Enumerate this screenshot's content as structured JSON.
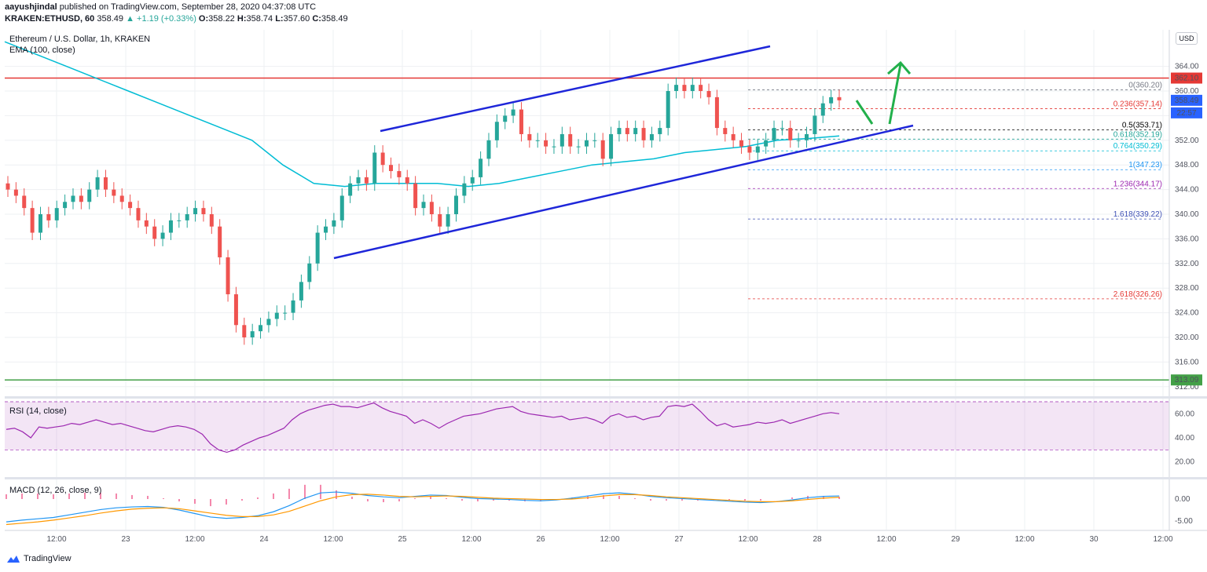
{
  "header": {
    "author": "aayushjindal",
    "published_text": "published on TradingView.com, September 28, 2020 04:37:08 UTC",
    "symbol": "KRAKEN:ETHUSD, 60",
    "last": "358.49",
    "change": "▲ +1.19 (+0.33%)",
    "o_label": "O:",
    "o": "358.22",
    "h_label": "H:",
    "h": "358.74",
    "l_label": "L:",
    "l": "357.60",
    "c_label": "C:",
    "c": "358.49"
  },
  "legend": {
    "title": "Ethereum / U.S. Dollar, 1h, KRAKEN",
    "ema": "EMA (100, close)",
    "rsi": "RSI (14, close)",
    "macd": "MACD (12, 26, close, 9)"
  },
  "currency": "USD",
  "branding": "TradingView",
  "colors": {
    "up": "#26a69a",
    "down": "#ef5350",
    "ema": "#00bcd4",
    "trend": "#1e26d9",
    "resistance": "#e53935",
    "support": "#43a047",
    "arrow": "#22b04b",
    "rsi": "#9c27b0",
    "macd": "#2196f3",
    "signal": "#ff9800"
  },
  "chart_data": {
    "type": "candlestick",
    "y_ticks": [
      "364.00",
      "360.00",
      "356.00",
      "352.00",
      "348.00",
      "344.00",
      "340.00",
      "336.00",
      "332.00",
      "328.00",
      "324.00",
      "320.00",
      "316.00",
      "312.00"
    ],
    "x_ticks": [
      "12:00",
      "23",
      "12:00",
      "24",
      "12:00",
      "25",
      "12:00",
      "26",
      "12:00",
      "27",
      "12:00",
      "28",
      "12:00",
      "29",
      "12:00",
      "30",
      "12:00"
    ],
    "price_labels": [
      {
        "value": "362.10",
        "kind": "resistance"
      },
      {
        "value": "358.49",
        "kind": "last"
      },
      {
        "value": "22:57",
        "kind": "countdown"
      },
      {
        "value": "313.09",
        "kind": "support"
      }
    ],
    "horizontal_levels": {
      "resistance": 362.1,
      "support": 313.09
    },
    "fibonacci": [
      {
        "label": "0(360.20)",
        "value": 360.2
      },
      {
        "label": "0.236(357.14)",
        "value": 357.14
      },
      {
        "label": "0.5(353.71)",
        "value": 353.71
      },
      {
        "label": "0.618(352.19)",
        "value": 352.19
      },
      {
        "label": "0.764(350.29)",
        "value": 350.29
      },
      {
        "label": "1(347.23)",
        "value": 347.23
      },
      {
        "label": "1.236(344.17)",
        "value": 344.17
      },
      {
        "label": "1.618(339.22)",
        "value": 339.22
      },
      {
        "label": "2.618(326.26)",
        "value": 326.26
      }
    ],
    "rsi_ticks": [
      "60.00",
      "40.00",
      "20.00"
    ],
    "macd_ticks": [
      "0.00",
      "-5.00"
    ],
    "candle_closes": [
      344,
      343,
      341,
      337,
      340,
      339,
      341,
      342,
      343,
      342,
      344,
      346,
      344,
      343,
      342,
      341,
      339,
      338,
      336,
      337,
      339,
      339,
      340,
      341,
      340,
      338,
      333,
      327,
      322,
      320,
      321,
      322,
      323,
      324,
      324,
      326,
      329,
      332,
      337,
      338,
      339,
      343,
      345,
      346,
      345,
      350,
      348,
      347,
      346,
      345,
      341,
      342,
      340,
      338,
      340,
      343,
      345,
      346,
      349,
      352,
      355,
      356,
      357,
      353,
      352,
      352,
      351,
      351,
      353,
      351,
      351,
      352,
      352,
      349,
      353,
      354,
      353,
      354,
      352,
      353,
      354,
      360,
      361,
      360,
      361,
      360,
      359,
      354,
      353,
      352,
      351,
      350,
      351,
      352,
      354,
      354,
      352,
      352,
      353,
      356,
      358,
      359,
      358.49
    ],
    "ema_points": [
      368,
      366,
      364,
      362,
      360,
      358,
      356,
      354,
      352,
      348,
      345,
      344.5,
      345,
      345,
      345,
      344.5,
      345,
      346,
      347,
      348,
      348.5,
      349,
      350,
      350.5,
      351,
      352,
      352.3,
      352.7
    ],
    "rsi_values": [
      47,
      48,
      45,
      40,
      49,
      48,
      49,
      50,
      52,
      51,
      53,
      55,
      53,
      51,
      52,
      50,
      48,
      46,
      45,
      47,
      49,
      50,
      49,
      47,
      43,
      35,
      30,
      28,
      30,
      34,
      37,
      40,
      42,
      45,
      48,
      55,
      60,
      63,
      65,
      67,
      68,
      66,
      66,
      65,
      67,
      69,
      65,
      62,
      60,
      58,
      52,
      55,
      52,
      48,
      52,
      55,
      58,
      59,
      60,
      62,
      64,
      65,
      66,
      62,
      60,
      59,
      58,
      57,
      58,
      55,
      56,
      57,
      55,
      52,
      58,
      60,
      57,
      58,
      55,
      57,
      58,
      66,
      67,
      66,
      68,
      62,
      55,
      50,
      52,
      49,
      50,
      51,
      53,
      52,
      53,
      55,
      52,
      54,
      56,
      58,
      60,
      61,
      60
    ],
    "macd_values": [
      -5.2,
      -4.8,
      -4.5,
      -4.2,
      -3.6,
      -3,
      -2.4,
      -2,
      -1.8,
      -1.7,
      -1.9,
      -2.5,
      -3.3,
      -4.1,
      -4.4,
      -4.2,
      -3.8,
      -2.9,
      -1.5,
      0.2,
      1.4,
      1.6,
      1.3,
      0.8,
      0.5,
      0.3,
      0.6,
      0.9,
      0.8,
      0.4,
      0.1,
      0,
      -0.1,
      -0.3,
      -0.4,
      -0.2,
      0.2,
      0.7,
      1.2,
      1.4,
      1.1,
      0.6,
      0.3,
      0.1,
      -0.1,
      -0.3,
      -0.5,
      -0.7,
      -0.8,
      -0.6,
      -0.2,
      0.3,
      0.6,
      0.7
    ],
    "signal_values": [
      -5.8,
      -5.5,
      -5.2,
      -4.8,
      -4.3,
      -3.8,
      -3.2,
      -2.7,
      -2.3,
      -2.1,
      -2,
      -2.2,
      -2.7,
      -3.2,
      -3.7,
      -4,
      -4,
      -3.6,
      -2.8,
      -1.6,
      -0.4,
      0.5,
      1,
      1.1,
      0.9,
      0.6,
      0.5,
      0.6,
      0.7,
      0.6,
      0.4,
      0.2,
      0.1,
      0,
      -0.1,
      -0.1,
      0,
      0.3,
      0.7,
      1,
      1,
      0.8,
      0.5,
      0.3,
      0.1,
      -0.1,
      -0.3,
      -0.5,
      -0.6,
      -0.6,
      -0.4,
      -0.1,
      0.2,
      0.4
    ]
  }
}
